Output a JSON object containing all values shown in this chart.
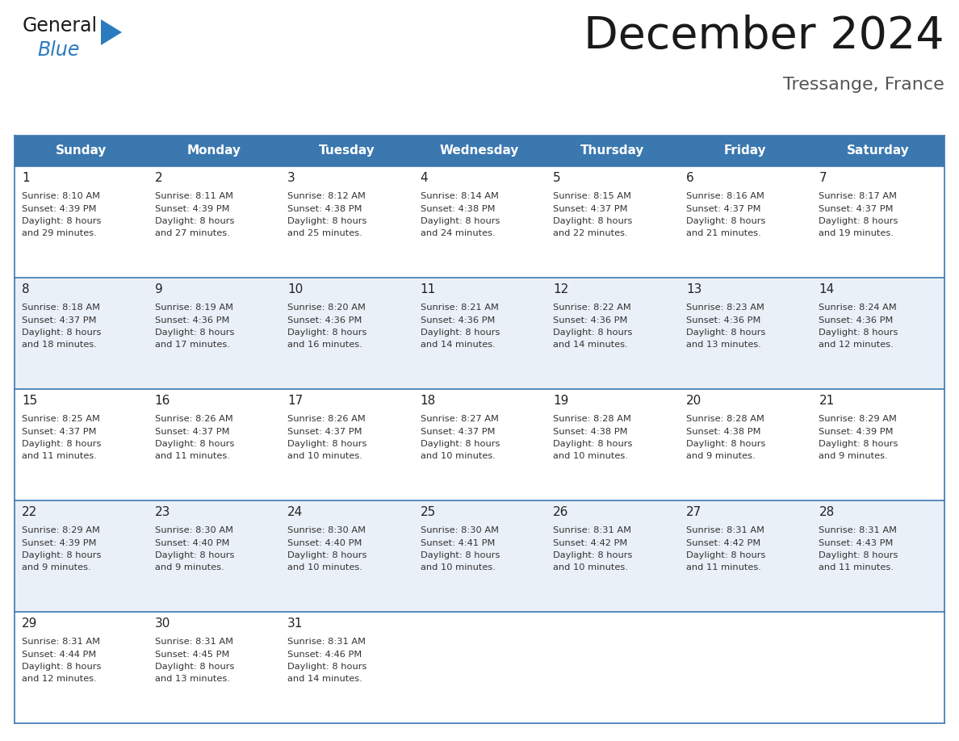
{
  "title": "December 2024",
  "subtitle": "Tressange, France",
  "header_bg_color": "#3b78b0",
  "header_text_color": "#ffffff",
  "cell_bg_color_odd": "#eaf0f7",
  "cell_bg_color_even": "#ffffff",
  "row_line_color": "#3b78b0",
  "days_of_week": [
    "Sunday",
    "Monday",
    "Tuesday",
    "Wednesday",
    "Thursday",
    "Friday",
    "Saturday"
  ],
  "logo_text_general": "General",
  "logo_text_blue": "Blue",
  "logo_color_black": "#1a1a1a",
  "logo_color_blue": "#2b7bbf",
  "calendar": [
    [
      {
        "day": 1,
        "sunrise": "8:10 AM",
        "sunset": "4:39 PM",
        "daylight": "8 hours and 29 minutes."
      },
      {
        "day": 2,
        "sunrise": "8:11 AM",
        "sunset": "4:39 PM",
        "daylight": "8 hours and 27 minutes."
      },
      {
        "day": 3,
        "sunrise": "8:12 AM",
        "sunset": "4:38 PM",
        "daylight": "8 hours and 25 minutes."
      },
      {
        "day": 4,
        "sunrise": "8:14 AM",
        "sunset": "4:38 PM",
        "daylight": "8 hours and 24 minutes."
      },
      {
        "day": 5,
        "sunrise": "8:15 AM",
        "sunset": "4:37 PM",
        "daylight": "8 hours and 22 minutes."
      },
      {
        "day": 6,
        "sunrise": "8:16 AM",
        "sunset": "4:37 PM",
        "daylight": "8 hours and 21 minutes."
      },
      {
        "day": 7,
        "sunrise": "8:17 AM",
        "sunset": "4:37 PM",
        "daylight": "8 hours and 19 minutes."
      }
    ],
    [
      {
        "day": 8,
        "sunrise": "8:18 AM",
        "sunset": "4:37 PM",
        "daylight": "8 hours and 18 minutes."
      },
      {
        "day": 9,
        "sunrise": "8:19 AM",
        "sunset": "4:36 PM",
        "daylight": "8 hours and 17 minutes."
      },
      {
        "day": 10,
        "sunrise": "8:20 AM",
        "sunset": "4:36 PM",
        "daylight": "8 hours and 16 minutes."
      },
      {
        "day": 11,
        "sunrise": "8:21 AM",
        "sunset": "4:36 PM",
        "daylight": "8 hours and 14 minutes."
      },
      {
        "day": 12,
        "sunrise": "8:22 AM",
        "sunset": "4:36 PM",
        "daylight": "8 hours and 14 minutes."
      },
      {
        "day": 13,
        "sunrise": "8:23 AM",
        "sunset": "4:36 PM",
        "daylight": "8 hours and 13 minutes."
      },
      {
        "day": 14,
        "sunrise": "8:24 AM",
        "sunset": "4:36 PM",
        "daylight": "8 hours and 12 minutes."
      }
    ],
    [
      {
        "day": 15,
        "sunrise": "8:25 AM",
        "sunset": "4:37 PM",
        "daylight": "8 hours and 11 minutes."
      },
      {
        "day": 16,
        "sunrise": "8:26 AM",
        "sunset": "4:37 PM",
        "daylight": "8 hours and 11 minutes."
      },
      {
        "day": 17,
        "sunrise": "8:26 AM",
        "sunset": "4:37 PM",
        "daylight": "8 hours and 10 minutes."
      },
      {
        "day": 18,
        "sunrise": "8:27 AM",
        "sunset": "4:37 PM",
        "daylight": "8 hours and 10 minutes."
      },
      {
        "day": 19,
        "sunrise": "8:28 AM",
        "sunset": "4:38 PM",
        "daylight": "8 hours and 10 minutes."
      },
      {
        "day": 20,
        "sunrise": "8:28 AM",
        "sunset": "4:38 PM",
        "daylight": "8 hours and 9 minutes."
      },
      {
        "day": 21,
        "sunrise": "8:29 AM",
        "sunset": "4:39 PM",
        "daylight": "8 hours and 9 minutes."
      }
    ],
    [
      {
        "day": 22,
        "sunrise": "8:29 AM",
        "sunset": "4:39 PM",
        "daylight": "8 hours and 9 minutes."
      },
      {
        "day": 23,
        "sunrise": "8:30 AM",
        "sunset": "4:40 PM",
        "daylight": "8 hours and 9 minutes."
      },
      {
        "day": 24,
        "sunrise": "8:30 AM",
        "sunset": "4:40 PM",
        "daylight": "8 hours and 10 minutes."
      },
      {
        "day": 25,
        "sunrise": "8:30 AM",
        "sunset": "4:41 PM",
        "daylight": "8 hours and 10 minutes."
      },
      {
        "day": 26,
        "sunrise": "8:31 AM",
        "sunset": "4:42 PM",
        "daylight": "8 hours and 10 minutes."
      },
      {
        "day": 27,
        "sunrise": "8:31 AM",
        "sunset": "4:42 PM",
        "daylight": "8 hours and 11 minutes."
      },
      {
        "day": 28,
        "sunrise": "8:31 AM",
        "sunset": "4:43 PM",
        "daylight": "8 hours and 11 minutes."
      }
    ],
    [
      {
        "day": 29,
        "sunrise": "8:31 AM",
        "sunset": "4:44 PM",
        "daylight": "8 hours and 12 minutes."
      },
      {
        "day": 30,
        "sunrise": "8:31 AM",
        "sunset": "4:45 PM",
        "daylight": "8 hours and 13 minutes."
      },
      {
        "day": 31,
        "sunrise": "8:31 AM",
        "sunset": "4:46 PM",
        "daylight": "8 hours and 14 minutes."
      },
      null,
      null,
      null,
      null
    ]
  ]
}
